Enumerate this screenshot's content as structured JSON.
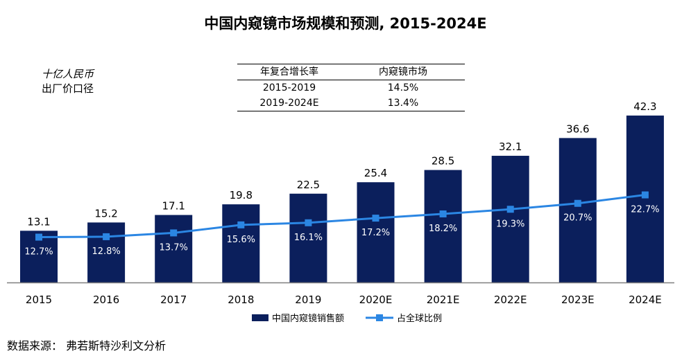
{
  "title": "中国内窥镜市场规模和预测, 2015-2024E",
  "unit_line1": "十亿人民币",
  "unit_line2": "出厂价口径",
  "cagr_table": {
    "headers": [
      "年复合增长率",
      "内窥镜市场"
    ],
    "rows": [
      {
        "period": "2015-2019",
        "value": "14.5%"
      },
      {
        "period": "2019-2024E",
        "value": "13.4%"
      }
    ]
  },
  "source": "数据来源： 弗若斯特沙利文分析",
  "colors": {
    "bar": "#0b1f5c",
    "line": "#2b86e3"
  },
  "chart_data": {
    "type": "bar",
    "categories": [
      "2015",
      "2016",
      "2017",
      "2018",
      "2019",
      "2020E",
      "2021E",
      "2022E",
      "2023E",
      "2024E"
    ],
    "series": [
      {
        "name": "中国内窥镜销售额",
        "type": "bar",
        "values": [
          13.1,
          15.2,
          17.1,
          19.8,
          22.5,
          25.4,
          28.5,
          32.1,
          36.6,
          42.3
        ],
        "labels": [
          "13.1",
          "15.2",
          "17.1",
          "19.8",
          "22.5",
          "25.4",
          "28.5",
          "32.1",
          "36.6",
          "42.3"
        ]
      },
      {
        "name": "占全球比例",
        "type": "line",
        "values": [
          12.7,
          12.8,
          13.7,
          15.6,
          16.1,
          17.2,
          18.2,
          19.3,
          20.7,
          22.7
        ],
        "labels": [
          "12.7%",
          "12.8%",
          "13.7%",
          "15.6%",
          "16.1%",
          "17.2%",
          "18.2%",
          "19.3%",
          "20.7%",
          "22.7%"
        ]
      }
    ],
    "legend_position": "bottom-center",
    "grid": false
  }
}
